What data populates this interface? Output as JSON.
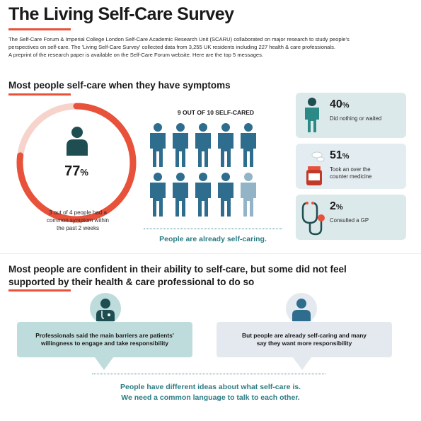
{
  "header": {
    "title": "The Living Self-Care Survey",
    "intro_line1": "The Self-Care Forum & Imperial College London Self-Care Academic Research Unit (SCARU) collaborated on major research to study people's",
    "intro_line2": "perspectives on self-care. The 'Living Self-Care Survey' collected data from 3,255 UK residents including 227 health & care professionals.",
    "intro_line3": "A preprint of the research paper is available on the Self-Care Forum website. Here are the top 5 messages."
  },
  "section1": {
    "heading": "Most people self-care when they have symptoms",
    "ring": {
      "value": 77,
      "value_text": "77",
      "unit": "%",
      "caption_line1": "3 out of 4 people had a",
      "caption_line2": "common symptom within",
      "caption_line3": "the past 2 weeks",
      "color_fill": "#e8513a",
      "color_track": "#f6d4cc"
    },
    "nine_of_ten": {
      "heading": "9 OUT OF 10 SELF-CARED",
      "selfcared": 9,
      "total": 10,
      "footer": "People are already self-caring.",
      "color_active": "#2f6d8f",
      "color_inactive": "#92b4c6"
    },
    "stats": [
      {
        "value": "40",
        "unit": "%",
        "label_line1": "Did nothing or waited",
        "label_line2": "",
        "icon": "standing-person-icon"
      },
      {
        "value": "51",
        "unit": "%",
        "label_line1": "Took an over the",
        "label_line2": "counter medicine",
        "icon": "medicine-bottle-icon"
      },
      {
        "value": "2",
        "unit": "%",
        "label_line1": "Consulted a GP",
        "label_line2": "",
        "icon": "stethoscope-icon"
      }
    ]
  },
  "section2": {
    "heading_line1": "Most people are confident in their ability to self-care, but some did not feel",
    "heading_line2": "supported by their health & care professional to do so",
    "bubble1_line1": "Professionals said the main barriers are patients'",
    "bubble1_line2": "willingness to engage and take responsibility",
    "bubble2_line1": "But people are already self-caring and many",
    "bubble2_line2": "say they want more responsibility",
    "bottom_line1": "People have different ideas about what self-care is.",
    "bottom_line2": "We need a common language to talk to each other."
  },
  "colors": {
    "accent": "#e8513a",
    "teal": "#2c7c84",
    "dark": "#1f4e52"
  }
}
